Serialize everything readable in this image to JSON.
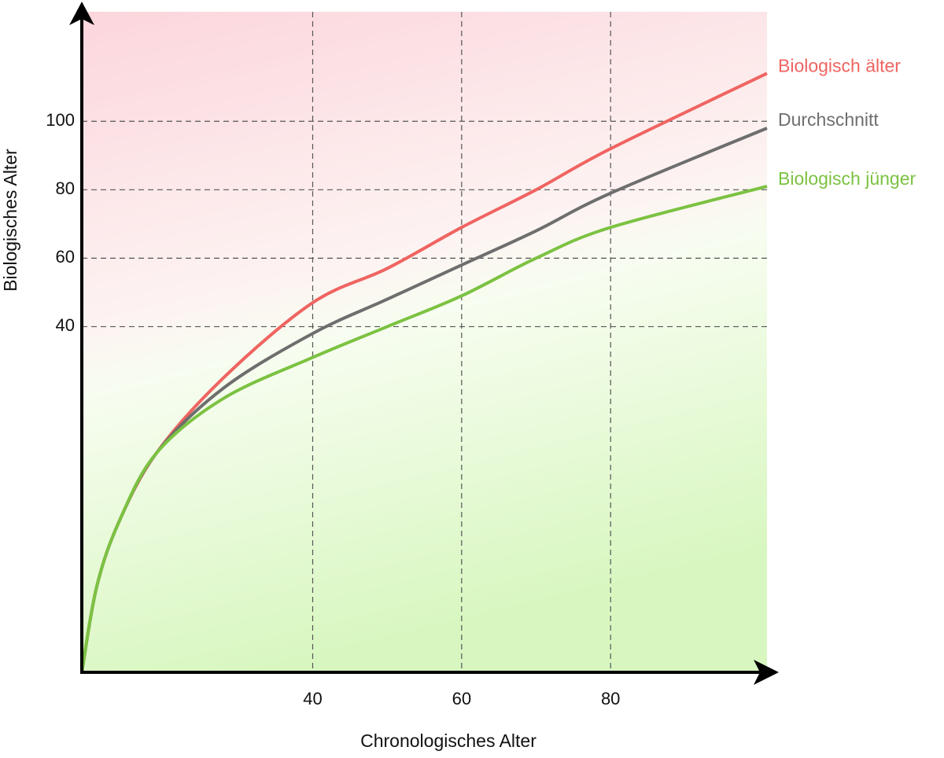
{
  "chart_data": {
    "type": "line",
    "x_label": "Chronologisches Alter",
    "y_label": "Biologisches Alter",
    "x": [
      9,
      11,
      14,
      19,
      28,
      40,
      50,
      60,
      70,
      80,
      101
    ],
    "series": [
      {
        "name": "Biologisch älter",
        "color": "#ef6461",
        "values": [
          -61,
          -36,
          -17,
          3,
          25,
          47,
          57,
          69,
          80,
          92,
          114
        ]
      },
      {
        "name": "Durchschnitt",
        "color": "#6e6e6e",
        "values": [
          -61,
          -36,
          -17,
          3,
          22,
          38,
          48,
          58,
          68,
          79,
          98
        ]
      },
      {
        "name": "Biologisch jünger",
        "color": "#7cc242",
        "values": [
          -61,
          -36,
          -17,
          3,
          19,
          31,
          40,
          49,
          60,
          69,
          81
        ]
      }
    ],
    "xlim": [
      9,
      101
    ],
    "ylim": [
      -61,
      132
    ],
    "xticks": [
      40,
      60,
      80
    ],
    "yticks": [
      40,
      60,
      80,
      100
    ],
    "grid": true
  }
}
